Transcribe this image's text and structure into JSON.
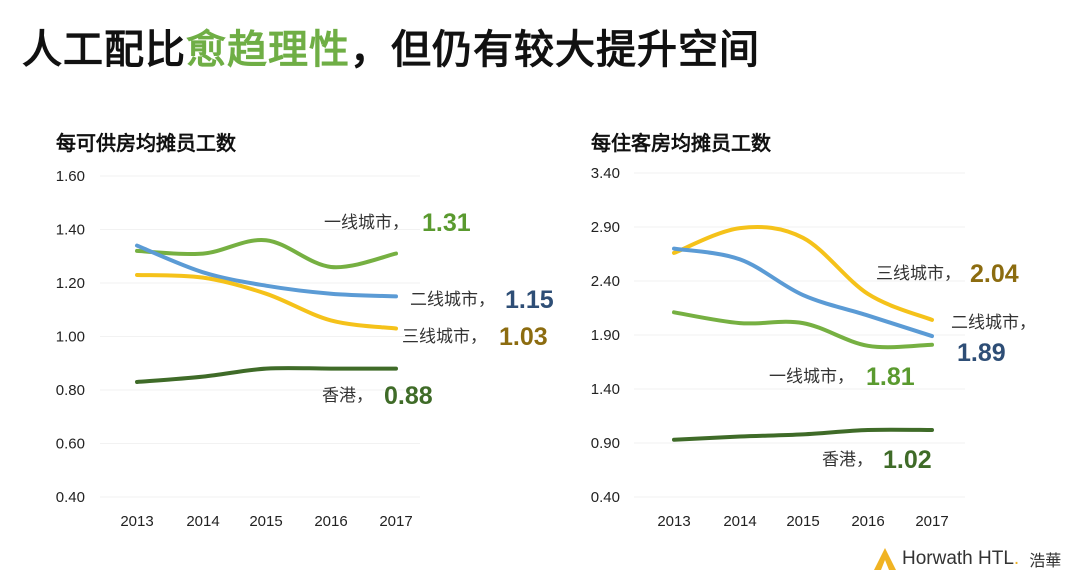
{
  "headline": {
    "part1": "人工配比",
    "highlight": "愈趋理性",
    "part2": "，但仍有较大提升空间"
  },
  "colors": {
    "highlight": "#6fae45",
    "tier1": "#76b042",
    "tier2": "#5b9bd5",
    "tier3": "#f5c21a",
    "hongkong": "#3f6b28"
  },
  "chart_data": [
    {
      "type": "line",
      "title": "每可供房均摊员工数",
      "categories": [
        "2013",
        "2014",
        "2015",
        "2016",
        "2017"
      ],
      "y_ticks": [
        "1.60",
        "1.40",
        "1.20",
        "1.00",
        "0.80",
        "0.60",
        "0.40"
      ],
      "ylim": [
        0.4,
        1.6
      ],
      "series": [
        {
          "name": "一线城市",
          "values": [
            1.32,
            1.31,
            1.36,
            1.26,
            1.31
          ],
          "value_label": "1.31",
          "color": "#76b042",
          "label_color": "#5a9a2f"
        },
        {
          "name": "二线城市",
          "values": [
            1.34,
            1.24,
            1.19,
            1.16,
            1.15
          ],
          "value_label": "1.15",
          "color": "#5b9bd5",
          "label_color": "#2e4e76"
        },
        {
          "name": "三线城市",
          "values": [
            1.23,
            1.22,
            1.16,
            1.06,
            1.03
          ],
          "value_label": "1.03",
          "color": "#f5c21a",
          "label_color": "#8c6c10"
        },
        {
          "name": "香港",
          "values": [
            0.83,
            0.85,
            0.88,
            0.88,
            0.88
          ],
          "value_label": "0.88",
          "color": "#3f6b28",
          "label_color": "#3f6b28"
        }
      ]
    },
    {
      "type": "line",
      "title": "每住客房均摊员工数",
      "categories": [
        "2013",
        "2014",
        "2015",
        "2016",
        "2017"
      ],
      "y_ticks": [
        "3.40",
        "2.90",
        "2.40",
        "1.90",
        "1.40",
        "0.90",
        "0.40"
      ],
      "ylim": [
        0.4,
        3.4
      ],
      "series": [
        {
          "name": "三线城市",
          "values": [
            2.66,
            2.89,
            2.8,
            2.28,
            2.04
          ],
          "value_label": "2.04",
          "color": "#f5c21a",
          "label_color": "#8c6c10"
        },
        {
          "name": "二线城市",
          "values": [
            2.7,
            2.6,
            2.27,
            2.08,
            1.89
          ],
          "value_label": "1.89",
          "color": "#5b9bd5",
          "label_color": "#2e4e76"
        },
        {
          "name": "一线城市",
          "values": [
            2.11,
            2.01,
            2.01,
            1.8,
            1.81
          ],
          "value_label": "1.81",
          "color": "#76b042",
          "label_color": "#5a9a2f"
        },
        {
          "name": "香港",
          "values": [
            0.93,
            0.96,
            0.98,
            1.02,
            1.02
          ],
          "value_label": "1.02",
          "color": "#3f6b28",
          "label_color": "#3f6b28"
        }
      ]
    }
  ],
  "logo": {
    "word": "Horwath HTL",
    "suffix": ".",
    "cn": "浩華"
  }
}
